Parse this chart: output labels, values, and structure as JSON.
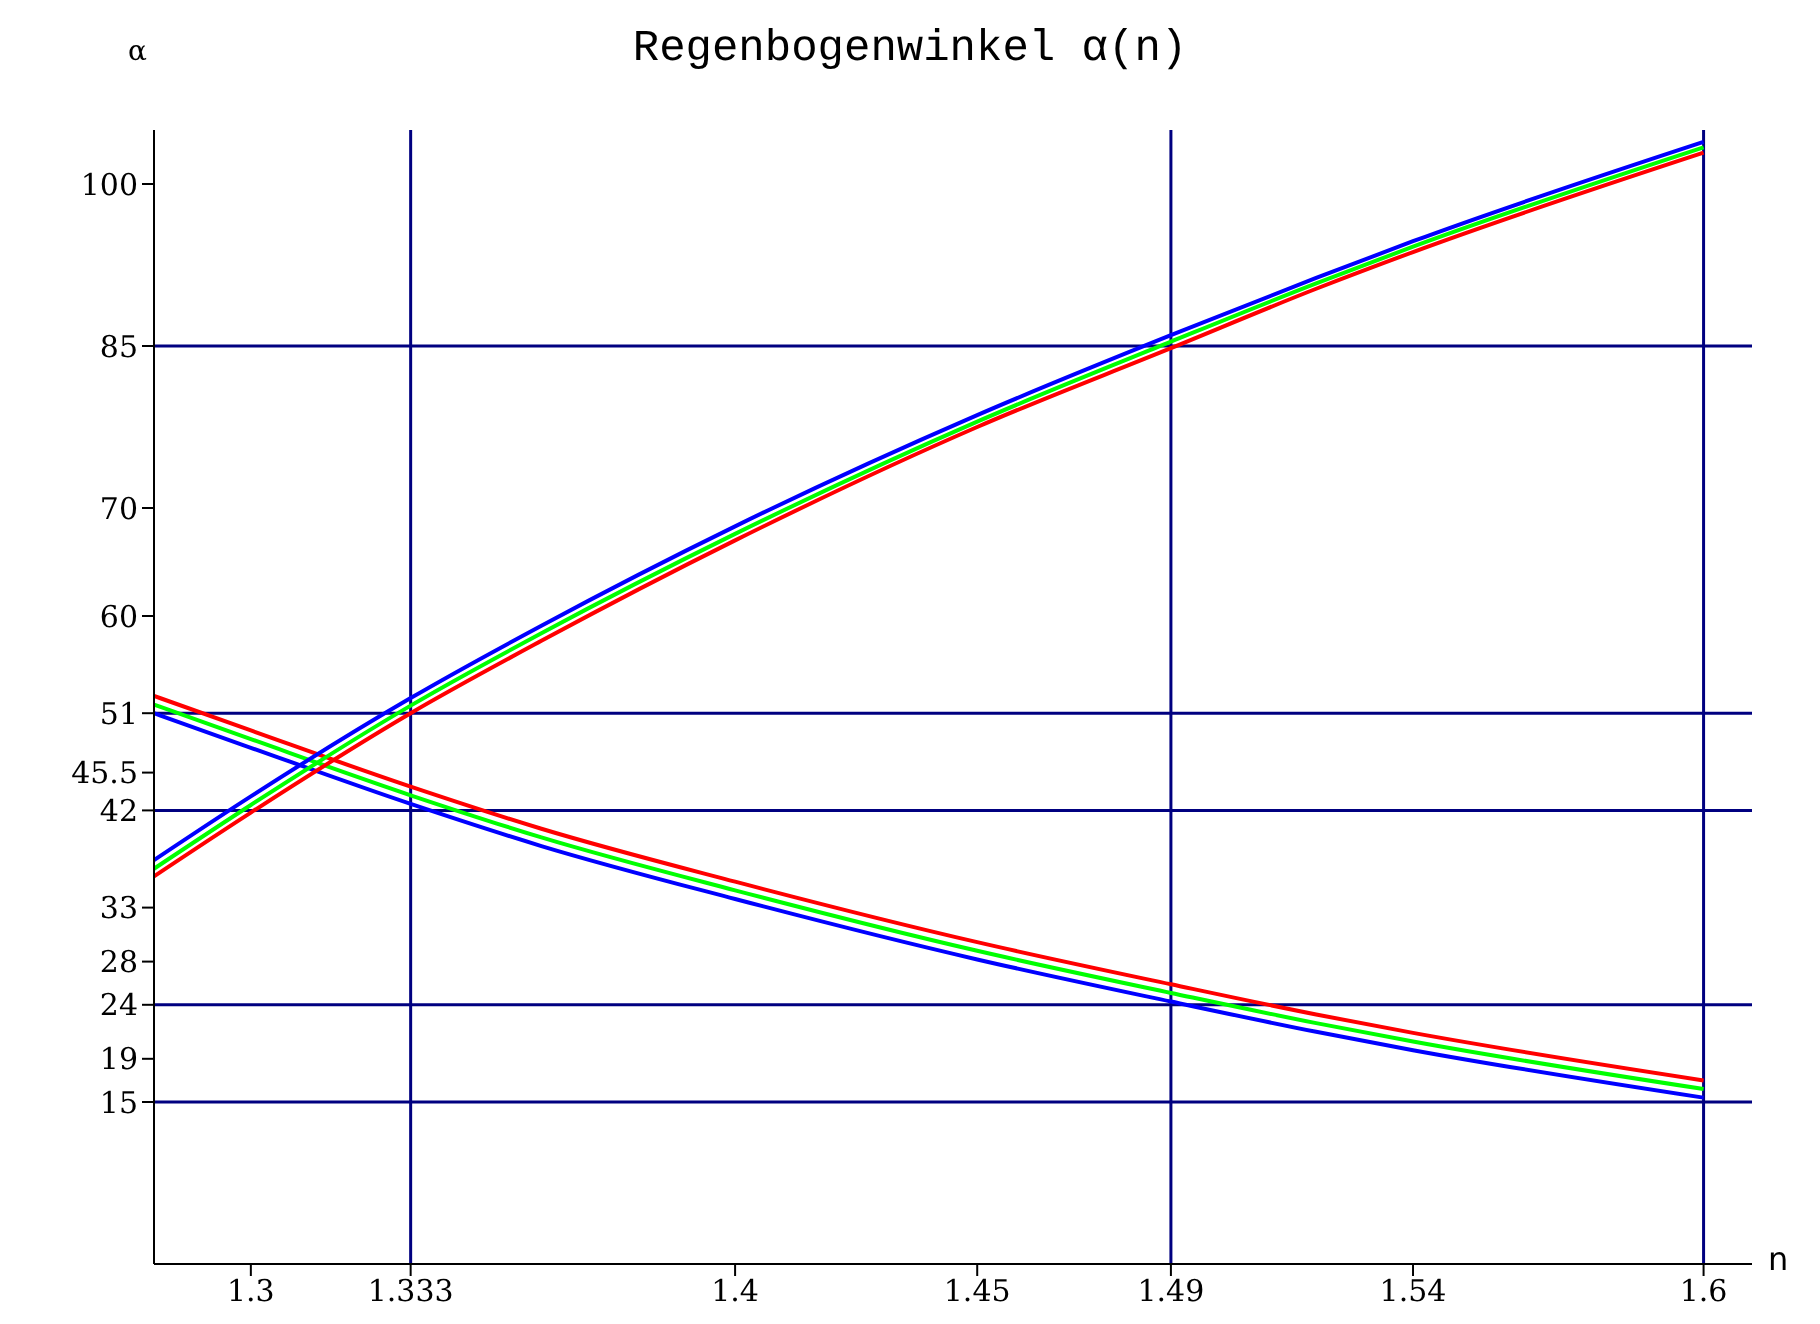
{
  "chart_data": {
    "type": "line",
    "title": "Regenbogenwinkel α(n)",
    "xlabel": "n",
    "ylabel": "α",
    "x": [
      1.28,
      1.3,
      1.333,
      1.36,
      1.4,
      1.45,
      1.49,
      1.52,
      1.54,
      1.6
    ],
    "series": [
      {
        "color": "#0000ff",
        "values": [
          51.0,
          47.8,
          42.6,
          38.7,
          33.8,
          28.2,
          24.3,
          21.5,
          19.8,
          15.4
        ]
      },
      {
        "color": "#00ff00",
        "values": [
          51.8,
          48.6,
          43.4,
          39.5,
          34.6,
          29.0,
          25.1,
          22.3,
          20.6,
          16.2
        ]
      },
      {
        "color": "#ff0000",
        "values": [
          52.6,
          49.4,
          44.2,
          40.3,
          35.4,
          29.8,
          25.9,
          23.1,
          21.4,
          17.0
        ]
      },
      {
        "color": "#ff0000",
        "values": [
          35.9,
          41.8,
          51.0,
          57.7,
          67.0,
          77.5,
          84.8,
          90.3,
          93.7,
          102.9
        ]
      },
      {
        "color": "#00ff00",
        "values": [
          36.6,
          42.5,
          51.7,
          58.4,
          67.6,
          78.0,
          85.4,
          90.8,
          94.2,
          103.4
        ]
      },
      {
        "color": "#0000ff",
        "values": [
          37.4,
          43.3,
          52.4,
          59.1,
          68.3,
          78.6,
          86.0,
          91.3,
          94.7,
          103.9
        ]
      }
    ],
    "xlim": [
      1.28,
      1.61
    ],
    "xticks": [
      1.3,
      1.333,
      1.4,
      1.45,
      1.49,
      1.54,
      1.6
    ],
    "ylim": [
      0,
      105
    ],
    "yticks": [
      15,
      19,
      24,
      28,
      33,
      42,
      45.5,
      51,
      60,
      70,
      85,
      100
    ],
    "ref_lines": [
      {
        "axis": "y",
        "value": 15,
        "color": "#000080"
      },
      {
        "axis": "y",
        "value": 24,
        "color": "#000080"
      },
      {
        "axis": "y",
        "value": 42,
        "color": "#000080"
      },
      {
        "axis": "y",
        "value": 51,
        "color": "#000080"
      },
      {
        "axis": "y",
        "value": 85,
        "color": "#000080"
      },
      {
        "axis": "x",
        "value": 1.333,
        "color": "#000080"
      },
      {
        "axis": "x",
        "value": 1.49,
        "color": "#000080"
      },
      {
        "axis": "x",
        "value": 1.6,
        "color": "#000080"
      }
    ],
    "line_style": "solid"
  }
}
